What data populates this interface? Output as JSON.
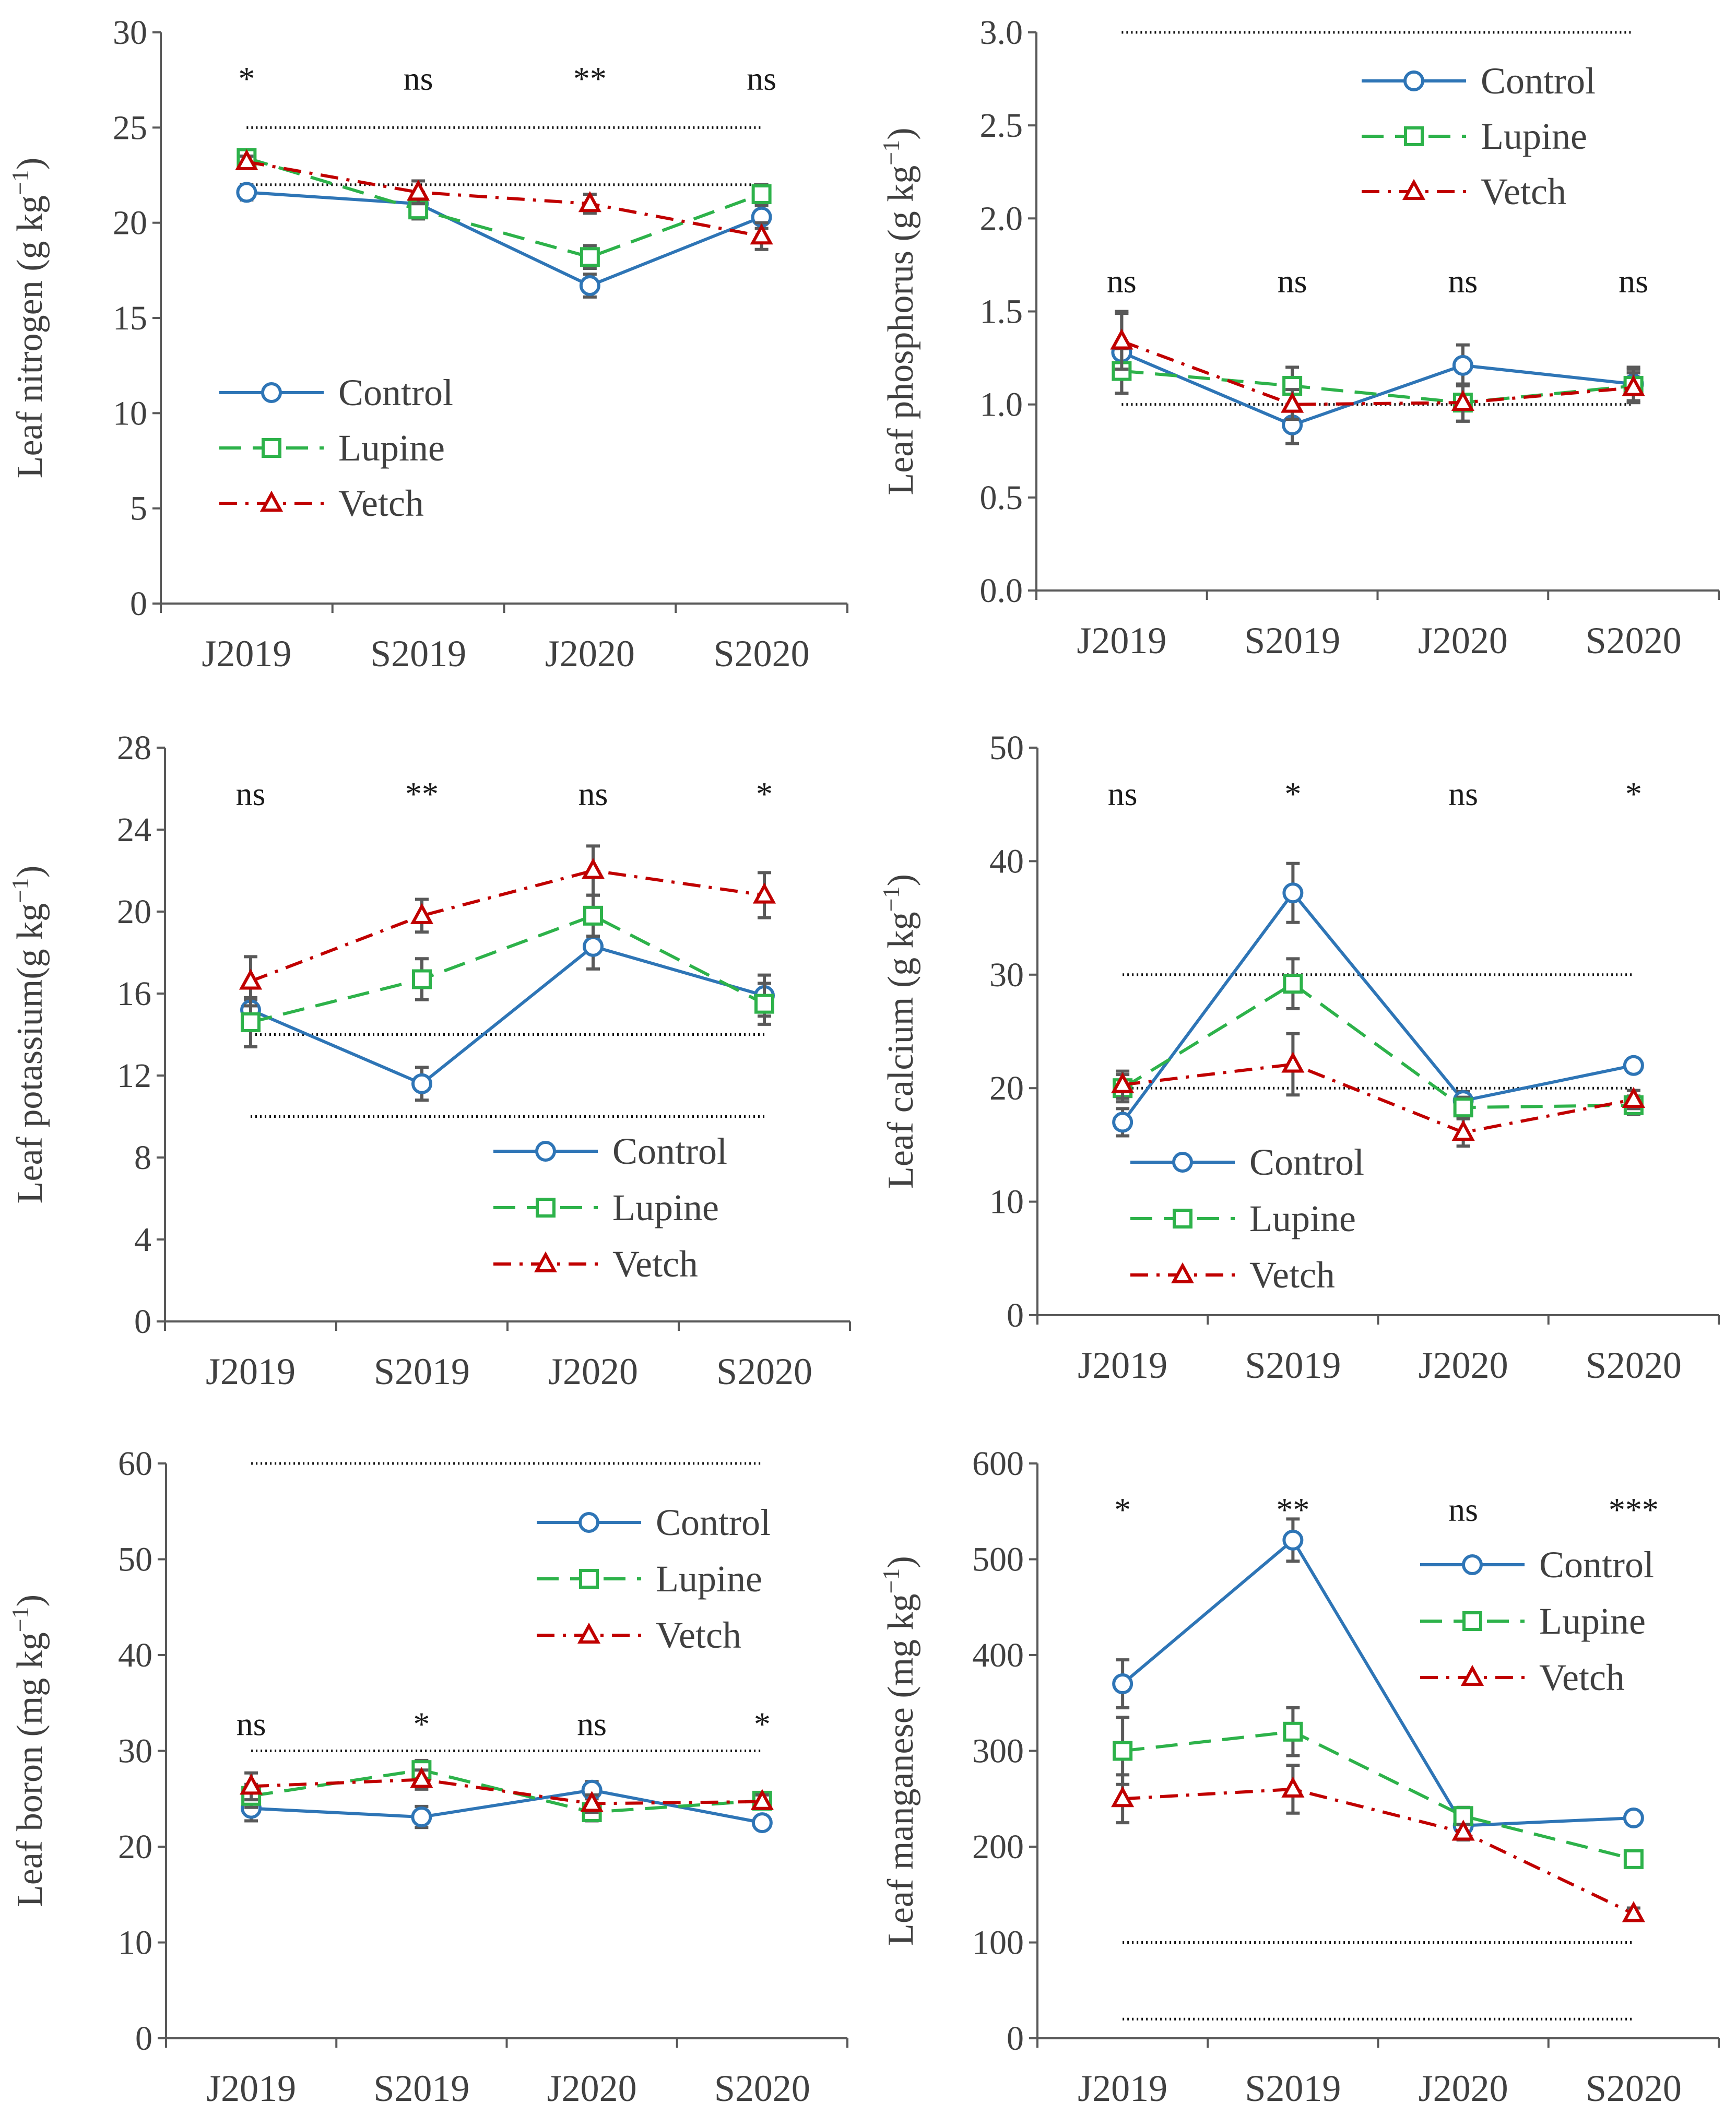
{
  "figure": {
    "series_names": [
      "Control",
      "Lupine",
      "Vetch"
    ],
    "series_colors": {
      "Control": "#2e75b6",
      "Lupine": "#2db24a",
      "Vetch": "#c00000"
    },
    "series_markers": {
      "Control": "circle",
      "Lupine": "square",
      "Vetch": "triangle"
    }
  },
  "chart_data": [
    {
      "type": "line",
      "title": "",
      "ylabel": "Leaf nitrogen (g kg",
      "ylabel_sup": "−1",
      "ylabel_close": ")",
      "categories": [
        "J2019",
        "S2019",
        "J2020",
        "S2020"
      ],
      "ylim": [
        0,
        30
      ],
      "yticks": [
        0,
        5,
        10,
        15,
        20,
        25,
        30
      ],
      "ytick_labels": [
        "0",
        "5",
        "10",
        "15",
        "20",
        "25",
        "30"
      ],
      "significance": [
        "*",
        "ns",
        "**",
        "ns"
      ],
      "reference_lines": [
        25,
        22
      ],
      "legend_position": "lower-left",
      "series": [
        {
          "name": "Control",
          "values": [
            21.6,
            21.0,
            16.7,
            20.3
          ],
          "errors": [
            0.4,
            0.6,
            0.6,
            0.6
          ]
        },
        {
          "name": "Lupine",
          "values": [
            23.4,
            20.7,
            18.2,
            21.5
          ],
          "errors": [
            0.3,
            0.5,
            0.6,
            0.5
          ]
        },
        {
          "name": "Vetch",
          "values": [
            23.2,
            21.6,
            21.0,
            19.3
          ],
          "errors": [
            0.3,
            0.6,
            0.5,
            0.7
          ]
        }
      ]
    },
    {
      "type": "line",
      "title": "",
      "ylabel": "Leaf phosphorus (g kg",
      "ylabel_sup": "−1",
      "ylabel_close": ")",
      "categories": [
        "J2019",
        "S2019",
        "J2020",
        "S2020"
      ],
      "ylim": [
        0,
        3.0
      ],
      "yticks": [
        0,
        0.5,
        1.0,
        1.5,
        2.0,
        2.5,
        3.0
      ],
      "ytick_labels": [
        "0.0",
        "0.5",
        "1.0",
        "1.5",
        "2.0",
        "2.5",
        "3.0"
      ],
      "significance": [
        "ns",
        "ns",
        "ns",
        "ns"
      ],
      "reference_lines": [
        3.0,
        1.0
      ],
      "legend_position": "top-right",
      "series": [
        {
          "name": "Control",
          "values": [
            1.28,
            0.89,
            1.21,
            1.11
          ],
          "errors": [
            0.22,
            0.1,
            0.11,
            0.09
          ]
        },
        {
          "name": "Lupine",
          "values": [
            1.18,
            1.1,
            1.01,
            1.1
          ],
          "errors": [
            0.12,
            0.1,
            0.1,
            0.09
          ]
        },
        {
          "name": "Vetch",
          "values": [
            1.34,
            1.0,
            1.01,
            1.09
          ],
          "errors": [
            0.15,
            0.08,
            0.1,
            0.08
          ]
        }
      ]
    },
    {
      "type": "line",
      "title": "",
      "ylabel": "Leaf potassium(g kg",
      "ylabel_sup": "−1",
      "ylabel_close": ")",
      "categories": [
        "J2019",
        "S2019",
        "J2020",
        "S2020"
      ],
      "ylim": [
        0,
        28
      ],
      "yticks": [
        0,
        4,
        8,
        12,
        16,
        20,
        24,
        28
      ],
      "ytick_labels": [
        "0",
        "4",
        "8",
        "12",
        "16",
        "20",
        "24",
        "28"
      ],
      "significance": [
        "ns",
        "**",
        "ns",
        "*"
      ],
      "reference_lines": [
        14,
        10
      ],
      "legend_position": "lower-right",
      "series": [
        {
          "name": "Control",
          "values": [
            15.2,
            11.6,
            18.3,
            15.9
          ],
          "errors": [
            0.5,
            0.8,
            1.1,
            1.0
          ]
        },
        {
          "name": "Lupine",
          "values": [
            14.6,
            16.7,
            19.8,
            15.5
          ],
          "errors": [
            1.2,
            1.0,
            1.0,
            1.0
          ]
        },
        {
          "name": "Vetch",
          "values": [
            16.6,
            19.8,
            22.0,
            20.8
          ],
          "errors": [
            1.2,
            0.8,
            1.2,
            1.1
          ]
        }
      ]
    },
    {
      "type": "line",
      "title": "",
      "ylabel": "Leaf calcium (g kg",
      "ylabel_sup": "−1",
      "ylabel_close": ")",
      "categories": [
        "J2019",
        "S2019",
        "J2020",
        "S2020"
      ],
      "ylim": [
        0,
        50
      ],
      "yticks": [
        0,
        10,
        20,
        30,
        40,
        50
      ],
      "ytick_labels": [
        "0",
        "10",
        "20",
        "30",
        "40",
        "50"
      ],
      "significance": [
        "ns",
        "*",
        "ns",
        "*"
      ],
      "reference_lines": [
        30,
        20
      ],
      "legend_position": "lower-left",
      "series": [
        {
          "name": "Control",
          "values": [
            17.0,
            37.2,
            18.9,
            22.0
          ],
          "errors": [
            1.2,
            2.6,
            0.8,
            0.6
          ]
        },
        {
          "name": "Lupine",
          "values": [
            20.0,
            29.2,
            18.3,
            18.5
          ],
          "errors": [
            1.2,
            2.2,
            0.9,
            0.8
          ]
        },
        {
          "name": "Vetch",
          "values": [
            20.3,
            22.1,
            16.1,
            19.0
          ],
          "errors": [
            1.2,
            2.7,
            1.2,
            0.8
          ]
        }
      ]
    },
    {
      "type": "line",
      "title": "",
      "ylabel": "Leaf boron (mg  kg",
      "ylabel_sup": "−1",
      "ylabel_close": ")",
      "categories": [
        "J2019",
        "S2019",
        "J2020",
        "S2020"
      ],
      "ylim": [
        0,
        60
      ],
      "yticks": [
        0,
        10,
        20,
        30,
        40,
        50,
        60
      ],
      "ytick_labels": [
        "0",
        "10",
        "20",
        "30",
        "40",
        "50",
        "60"
      ],
      "significance": [
        "ns",
        "*",
        "ns",
        "*"
      ],
      "reference_lines": [
        60,
        30
      ],
      "legend_position": "top-right",
      "series": [
        {
          "name": "Control",
          "values": [
            24.0,
            23.1,
            25.9,
            22.5
          ],
          "errors": [
            1.3,
            1.1,
            0.9,
            0.6
          ]
        },
        {
          "name": "Lupine",
          "values": [
            25.3,
            28.0,
            23.6,
            24.8
          ],
          "errors": [
            1.2,
            1.0,
            0.9,
            0.7
          ]
        },
        {
          "name": "Vetch",
          "values": [
            26.3,
            27.0,
            24.5,
            24.7
          ],
          "errors": [
            1.4,
            1.0,
            0.9,
            0.7
          ]
        }
      ]
    },
    {
      "type": "line",
      "title": "",
      "ylabel": "Leaf manganese (mg  kg",
      "ylabel_sup": "−1",
      "ylabel_close": ")",
      "categories": [
        "J2019",
        "S2019",
        "J2020",
        "S2020"
      ],
      "ylim": [
        0,
        600
      ],
      "yticks": [
        0,
        100,
        200,
        300,
        400,
        500,
        600
      ],
      "ytick_labels": [
        "0",
        "100",
        "200",
        "300",
        "400",
        "500",
        "600"
      ],
      "significance": [
        "*",
        "**",
        "ns",
        "***"
      ],
      "reference_lines": [
        100,
        20
      ],
      "legend_position": "top-right",
      "series": [
        {
          "name": "Control",
          "values": [
            370,
            520,
            222,
            230
          ],
          "errors": [
            25,
            22,
            8,
            6
          ]
        },
        {
          "name": "Lupine",
          "values": [
            300,
            320,
            232,
            187
          ],
          "errors": [
            35,
            25,
            9,
            7
          ]
        },
        {
          "name": "Vetch",
          "values": [
            250,
            260,
            215,
            130
          ],
          "errors": [
            25,
            25,
            8,
            6
          ]
        }
      ]
    }
  ]
}
